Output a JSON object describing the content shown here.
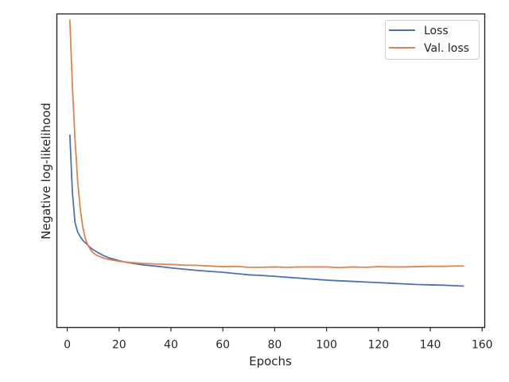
{
  "chart_data": {
    "type": "line",
    "xlabel": "Epochs",
    "ylabel": "Negative log-likelihood",
    "xlim": [
      -4,
      161
    ],
    "ylim": [
      0.0,
      1.0
    ],
    "xticks": [
      0,
      20,
      40,
      60,
      80,
      100,
      120,
      140,
      160
    ],
    "yticks_visible": false,
    "grid": false,
    "legend_position": "top-right",
    "series": [
      {
        "name": "Loss",
        "color": "#4c72b0",
        "x": [
          1,
          2,
          3,
          4,
          5,
          6,
          7,
          8,
          9,
          10,
          11,
          12,
          13,
          14,
          15,
          16,
          18,
          20,
          22,
          25,
          28,
          30,
          35,
          40,
          45,
          50,
          55,
          60,
          65,
          70,
          75,
          80,
          85,
          90,
          95,
          100,
          105,
          110,
          115,
          120,
          125,
          130,
          135,
          140,
          145,
          150,
          153
        ],
        "values": [
          0.615,
          0.43,
          0.335,
          0.305,
          0.29,
          0.278,
          0.27,
          0.262,
          0.254,
          0.248,
          0.243,
          0.238,
          0.234,
          0.229,
          0.226,
          0.222,
          0.218,
          0.213,
          0.209,
          0.205,
          0.201,
          0.199,
          0.195,
          0.19,
          0.186,
          0.182,
          0.179,
          0.176,
          0.172,
          0.168,
          0.166,
          0.163,
          0.16,
          0.157,
          0.154,
          0.151,
          0.149,
          0.147,
          0.145,
          0.143,
          0.141,
          0.139,
          0.137,
          0.136,
          0.135,
          0.133,
          0.132
        ]
      },
      {
        "name": "Val. loss",
        "color": "#dd8452",
        "x": [
          1,
          2,
          3,
          4,
          5,
          6,
          7,
          8,
          9,
          10,
          11,
          12,
          13,
          14,
          15,
          16,
          18,
          20,
          22,
          25,
          28,
          30,
          35,
          40,
          45,
          50,
          55,
          60,
          65,
          70,
          75,
          80,
          85,
          90,
          95,
          100,
          105,
          110,
          115,
          120,
          125,
          130,
          135,
          140,
          145,
          150,
          153
        ],
        "values": [
          0.982,
          0.77,
          0.6,
          0.47,
          0.38,
          0.32,
          0.283,
          0.262,
          0.248,
          0.238,
          0.232,
          0.228,
          0.225,
          0.221,
          0.219,
          0.217,
          0.214,
          0.211,
          0.209,
          0.207,
          0.205,
          0.204,
          0.202,
          0.201,
          0.199,
          0.198,
          0.196,
          0.194,
          0.195,
          0.192,
          0.192,
          0.193,
          0.192,
          0.193,
          0.193,
          0.193,
          0.191,
          0.193,
          0.192,
          0.194,
          0.193,
          0.193,
          0.194,
          0.195,
          0.195,
          0.196,
          0.196
        ]
      }
    ]
  }
}
